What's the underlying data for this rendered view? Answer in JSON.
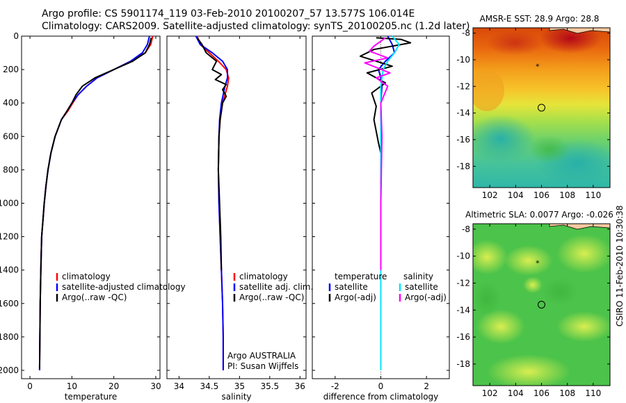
{
  "header": {
    "line1": "Argo profile: CS 5901174_119 03-Feb-2010 20100207_57 13.577S 106.014E",
    "line2": "Climatology: CARS2009. Satellite-adjusted climatology: synTS_20100205.nc (1.2d later)"
  },
  "credit": "CSIRO 11-Feb-2010 10:30:38",
  "colors": {
    "climatology": "#ff0000",
    "satellite": "#0000ff",
    "argo": "#000000",
    "sal_satellite": "#00e5ff",
    "sal_argo": "#ff00ff"
  },
  "chart_data": [
    {
      "type": "line",
      "xlabel": "temperature",
      "ylabel": "",
      "xlim": [
        -2,
        31
      ],
      "ylim": [
        2050,
        0
      ],
      "xticks": [
        0,
        10,
        20,
        30
      ],
      "yticks": [
        0,
        200,
        400,
        600,
        800,
        1000,
        1200,
        1400,
        1600,
        1800,
        2000
      ],
      "series": [
        {
          "name": "climatology",
          "color": "#ff0000",
          "x": [
            29.3,
            28.8,
            27.5,
            24,
            20,
            16,
            13.5,
            11.5,
            10.2,
            9.0,
            7.5,
            6.0,
            5.0,
            4.3,
            3.8,
            3.4,
            3.1,
            2.8,
            2.6,
            2.45,
            2.3
          ],
          "y": [
            0,
            50,
            100,
            150,
            200,
            250,
            300,
            350,
            400,
            450,
            500,
            600,
            700,
            800,
            900,
            1000,
            1100,
            1200,
            1400,
            1600,
            2000
          ]
        },
        {
          "name": "satellite-adjusted climatology",
          "color": "#0000ff",
          "x": [
            28.5,
            28.0,
            26.8,
            24,
            20,
            16,
            13.5,
            11.5,
            10.0,
            8.8,
            7.5,
            6.0,
            5.0,
            4.3,
            3.8,
            3.4,
            3.1,
            2.8,
            2.6,
            2.45,
            2.3
          ],
          "y": [
            0,
            50,
            100,
            150,
            200,
            250,
            300,
            350,
            400,
            450,
            500,
            600,
            700,
            800,
            900,
            1000,
            1100,
            1200,
            1400,
            1600,
            2000
          ]
        },
        {
          "name": "Argo(..raw -QC)",
          "color": "#000000",
          "x": [
            28.9,
            28.5,
            27.5,
            24.5,
            20,
            15.5,
            12.5,
            11.0,
            10.0,
            8.8,
            7.5,
            6.0,
            5.0,
            4.3,
            3.8,
            3.4,
            3.1,
            2.8,
            2.6,
            2.45,
            2.3
          ],
          "y": [
            10,
            50,
            100,
            150,
            200,
            250,
            300,
            350,
            400,
            450,
            500,
            600,
            700,
            800,
            900,
            1000,
            1100,
            1200,
            1400,
            1600,
            1990
          ]
        }
      ],
      "legend": [
        "climatology",
        "satellite-adjusted climatology",
        "Argo(..raw -QC)"
      ],
      "legend_position": "bottom-right"
    },
    {
      "type": "line",
      "xlabel": "salinity",
      "ylabel": "",
      "xlim": [
        33.8,
        36.1
      ],
      "ylim": [
        2050,
        0
      ],
      "xticks": [
        34,
        34.5,
        35,
        35.5,
        36
      ],
      "yticks": [
        0,
        200,
        400,
        600,
        800,
        1000,
        1200,
        1400,
        1600,
        1800,
        2000
      ],
      "annotation": [
        "Argo AUSTRALIA",
        "PI: Susan Wijffels"
      ],
      "series": [
        {
          "name": "climatology",
          "color": "#ff0000",
          "x": [
            34.3,
            34.35,
            34.5,
            34.65,
            34.78,
            34.82,
            34.8,
            34.72,
            34.68,
            34.66,
            34.65,
            34.66,
            34.68,
            34.7,
            34.72,
            34.73,
            34.73
          ],
          "y": [
            0,
            50,
            100,
            150,
            200,
            250,
            300,
            400,
            500,
            600,
            800,
            1000,
            1200,
            1400,
            1600,
            1800,
            2000
          ]
        },
        {
          "name": "satellite adj. clim.",
          "color": "#0000ff",
          "x": [
            34.28,
            34.35,
            34.55,
            34.72,
            34.8,
            34.8,
            34.76,
            34.7,
            34.67,
            34.66,
            34.65,
            34.66,
            34.68,
            34.7,
            34.72,
            34.73,
            34.73
          ],
          "y": [
            0,
            50,
            100,
            150,
            200,
            250,
            300,
            400,
            500,
            600,
            800,
            1000,
            1200,
            1400,
            1600,
            1800,
            2000
          ]
        },
        {
          "name": "Argo(..raw -QC)",
          "color": "#000000",
          "x": [
            34.3,
            34.38,
            34.45,
            34.62,
            34.55,
            34.7,
            34.6,
            34.78,
            34.72,
            34.78,
            34.72,
            34.68,
            34.66,
            34.65,
            34.67,
            34.69,
            34.7
          ],
          "y": [
            10,
            50,
            100,
            150,
            200,
            230,
            260,
            290,
            320,
            360,
            400,
            500,
            600,
            800,
            1000,
            1200,
            1400
          ]
        }
      ],
      "legend": [
        "climatology",
        "satellite adj. clim.",
        "Argo(..raw -QC)"
      ],
      "legend_position": "bottom-right"
    },
    {
      "type": "line",
      "xlabel": "difference from climatology",
      "ylabel": "",
      "xlim": [
        -3,
        3
      ],
      "ylim": [
        2050,
        0
      ],
      "xticks": [
        -2,
        0,
        2
      ],
      "yticks": [
        0,
        200,
        400,
        600,
        800,
        1000,
        1200,
        1400,
        1600,
        1800,
        2000
      ],
      "series": [
        {
          "name": "temperature satellite",
          "color": "#0000ff",
          "x": [
            0.3,
            0.5,
            0.6,
            0.2,
            -0.1,
            0.0,
            0.05,
            0.0,
            0.0,
            0.0,
            0.0,
            0.0
          ],
          "y": [
            0,
            50,
            100,
            150,
            200,
            250,
            300,
            400,
            600,
            1000,
            1400,
            2000
          ]
        },
        {
          "name": "temperature Argo(-adj)",
          "color": "#000000",
          "x": [
            -0.2,
            0.9,
            1.3,
            -0.3,
            -0.9,
            0.5,
            -0.6,
            0.2,
            -0.4,
            -0.2,
            -0.3,
            -0.1,
            0.0,
            0.0,
            0.0
          ],
          "y": [
            10,
            20,
            40,
            80,
            120,
            180,
            220,
            280,
            340,
            420,
            500,
            640,
            700,
            900,
            1990
          ]
        },
        {
          "name": "salinity satellite",
          "color": "#00e5ff",
          "x": [
            0.5,
            0.8,
            0.6,
            0.3,
            0.1,
            0.0,
            0.0,
            0.0,
            0.0,
            0.0,
            0.0
          ],
          "y": [
            0,
            50,
            100,
            150,
            200,
            300,
            400,
            600,
            1000,
            1400,
            2000
          ]
        },
        {
          "name": "salinity Argo(-adj)",
          "color": "#ff00ff",
          "x": [
            0.2,
            -0.3,
            -0.5,
            0.3,
            -0.7,
            0.4,
            -0.2,
            0.3,
            0.0,
            0.05,
            0.0,
            0.0
          ],
          "y": [
            10,
            60,
            90,
            130,
            160,
            220,
            250,
            300,
            400,
            600,
            1000,
            1400
          ]
        }
      ],
      "legend_groups": [
        {
          "heading": "temperature",
          "items": [
            "satellite",
            "Argo(-adj)"
          ]
        },
        {
          "heading": "salinity",
          "items": [
            "satellite",
            "Argo(-adj)"
          ]
        }
      ],
      "legend_position": "bottom"
    },
    {
      "type": "heatmap",
      "title": "AMSR-E SST: 28.9 Argo: 28.8",
      "xlim": [
        100.7,
        111.3
      ],
      "ylim": [
        -19.6,
        -7.6
      ],
      "xticks": [
        102,
        104,
        106,
        108,
        110
      ],
      "yticks": [
        -8,
        -10,
        -12,
        -14,
        -16,
        -18
      ],
      "profile_marker": {
        "x": 106.0,
        "y": -13.6
      },
      "previous_marker": {
        "x": 105.7,
        "y": -10.5
      }
    },
    {
      "type": "heatmap",
      "title": "Altimetric SLA: 0.0077 Argo: -0.026",
      "xlim": [
        100.7,
        111.3
      ],
      "ylim": [
        -19.6,
        -7.6
      ],
      "xticks": [
        102,
        104,
        106,
        108,
        110
      ],
      "yticks": [
        -8,
        -10,
        -12,
        -14,
        -16,
        -18
      ],
      "profile_marker": {
        "x": 106.0,
        "y": -13.6
      },
      "previous_marker": {
        "x": 105.7,
        "y": -10.5
      }
    }
  ]
}
